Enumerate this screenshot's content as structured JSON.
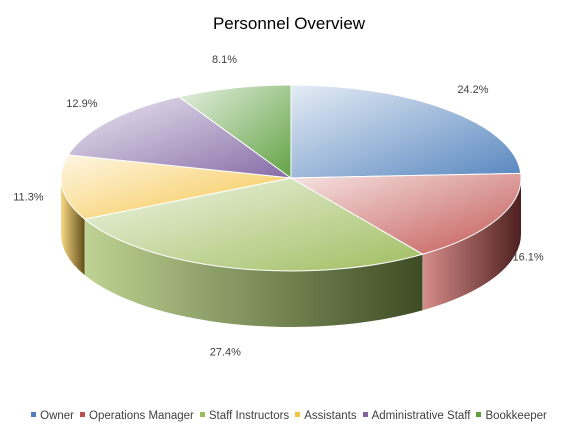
{
  "chart_data": {
    "type": "pie",
    "title": "Personnel Overview",
    "categories": [
      "Owner",
      "Operations Manager",
      "Staff Instructors",
      "Assistants",
      "Administrative Staff",
      "Bookkeeper"
    ],
    "values": [
      24.2,
      16.1,
      27.4,
      11.3,
      12.9,
      8.1
    ],
    "labels": [
      "24.2%",
      "16.1%",
      "27.4%",
      "11.3%",
      "12.9%",
      "8.1%"
    ],
    "colors": [
      "#4f81bd",
      "#c0504d",
      "#9bbb59",
      "#f6c342",
      "#8064a2",
      "#5b9e3b"
    ],
    "legend_position": "bottom",
    "style": "3d"
  }
}
